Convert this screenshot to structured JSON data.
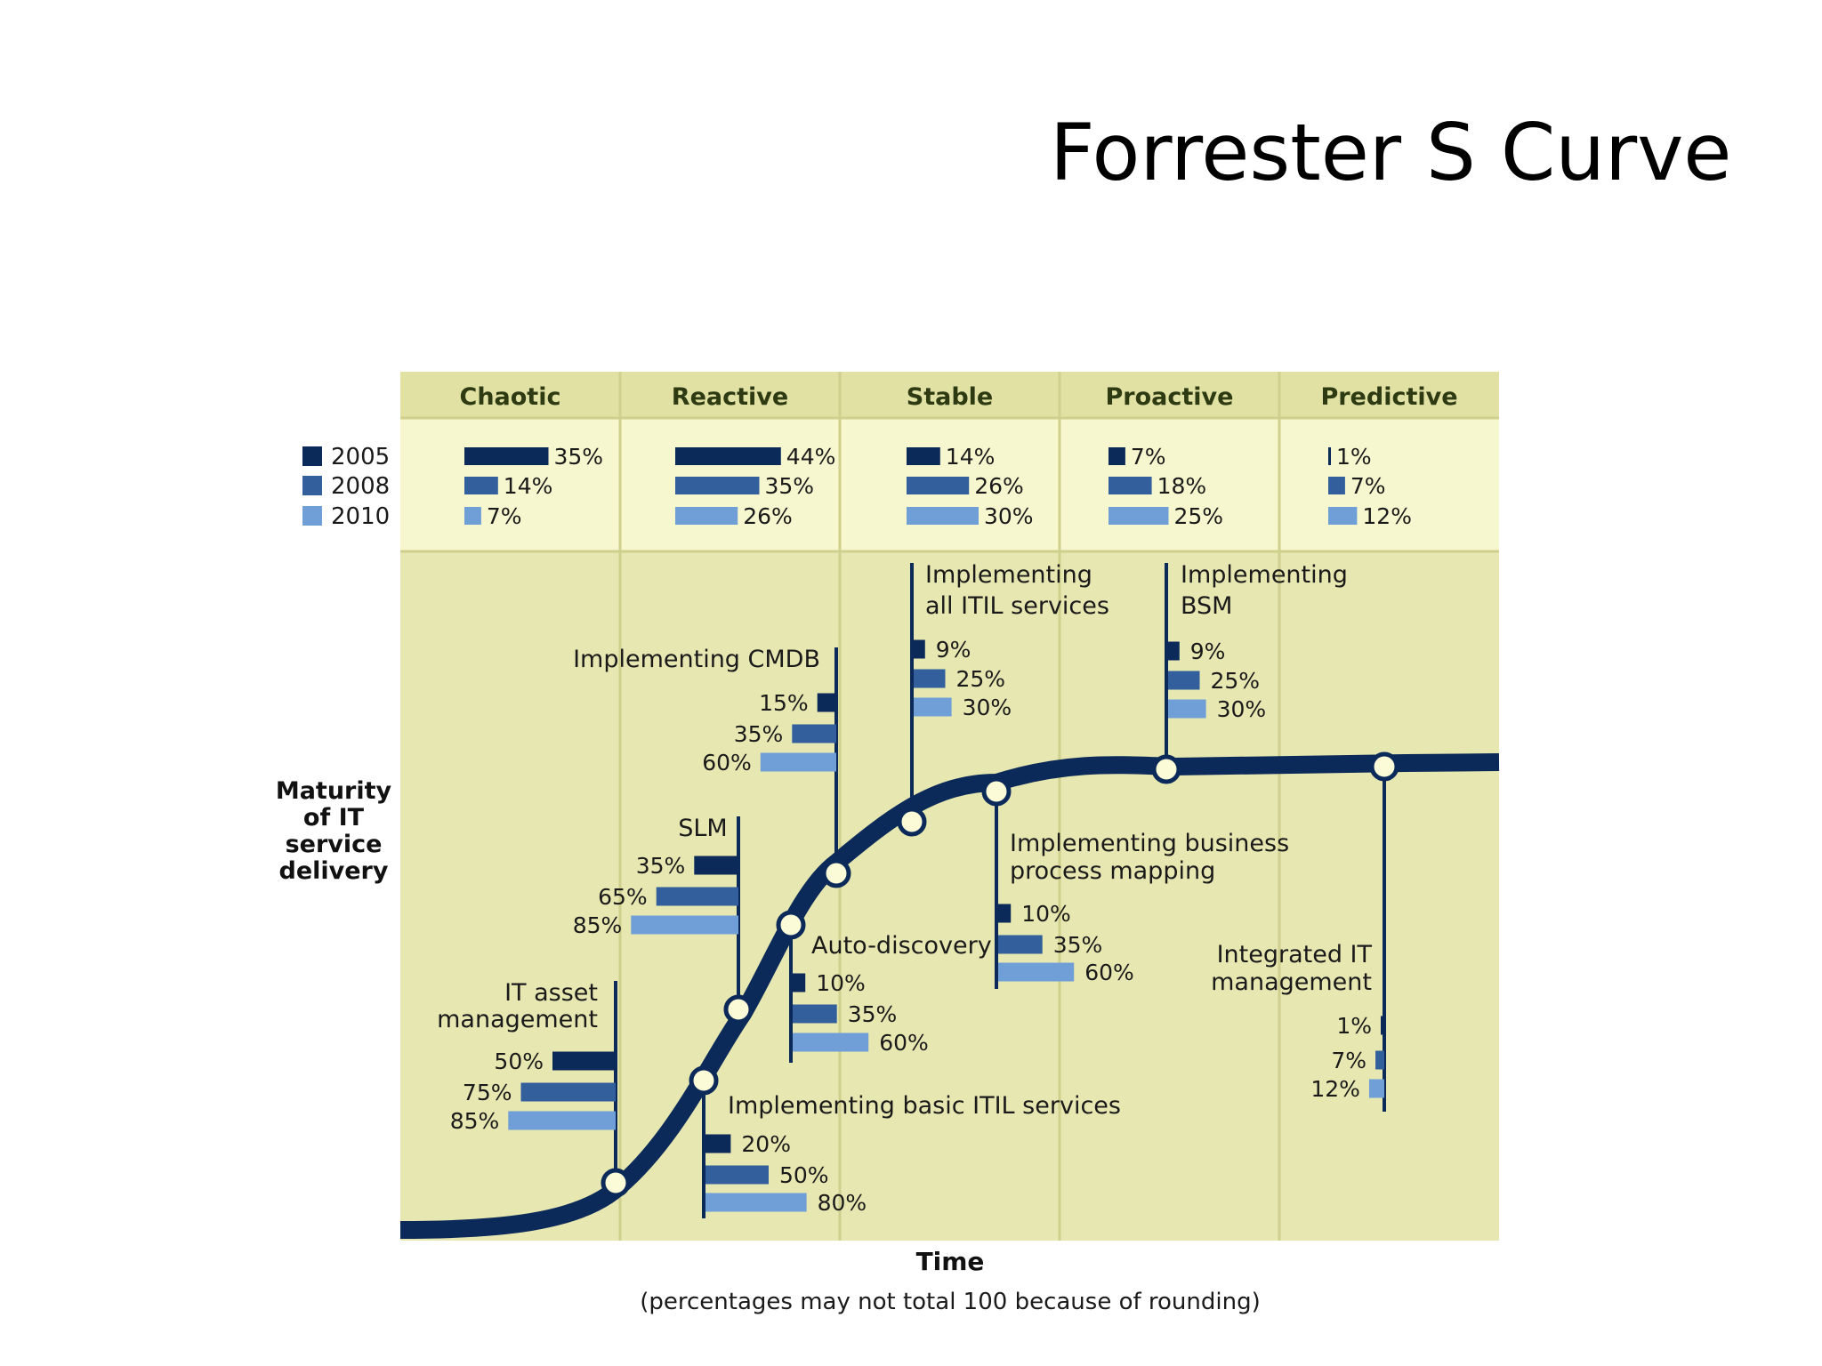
{
  "slide": {
    "title": "Forrester S Curve"
  },
  "colors": {
    "series_2005": "#0b2a59",
    "series_2008": "#33609c",
    "series_2010": "#6f9fd6",
    "header_band": "#e1e1a4",
    "legend_band": "#f7f7cf",
    "plot_bg": "#e7e7b1",
    "curve": "#0b2a59"
  },
  "chart_data": {
    "type": "bar",
    "x_label": "Time",
    "y_label": "Maturity of IT service delivery",
    "y_label_lines": [
      "Maturity",
      "of IT",
      "service",
      "delivery"
    ],
    "footnote": "(percentages may not total 100 because of rounding)",
    "legend": [
      "2005",
      "2008",
      "2010"
    ],
    "stages": [
      {
        "name": "Chaotic",
        "values": [
          35,
          14,
          7
        ]
      },
      {
        "name": "Reactive",
        "values": [
          44,
          35,
          26
        ]
      },
      {
        "name": "Stable",
        "values": [
          14,
          26,
          30
        ]
      },
      {
        "name": "Proactive",
        "values": [
          7,
          18,
          25
        ]
      },
      {
        "name": "Predictive",
        "values": [
          1,
          7,
          12
        ]
      }
    ],
    "milestones": [
      {
        "label_lines": [
          "IT asset",
          "management"
        ],
        "values": [
          50,
          75,
          85
        ]
      },
      {
        "label_lines": [
          "Implementing basic ITIL services"
        ],
        "values": [
          20,
          50,
          80
        ]
      },
      {
        "label_lines": [
          "SLM"
        ],
        "values": [
          35,
          65,
          85
        ]
      },
      {
        "label_lines": [
          "Auto-discovery"
        ],
        "values": [
          10,
          35,
          60
        ]
      },
      {
        "label_lines": [
          "Implementing CMDB"
        ],
        "values": [
          15,
          35,
          60
        ]
      },
      {
        "label_lines": [
          "Implementing",
          "all ITIL services"
        ],
        "values": [
          9,
          25,
          30
        ]
      },
      {
        "label_lines": [
          "Implementing business",
          "process mapping"
        ],
        "values": [
          10,
          35,
          60
        ]
      },
      {
        "label_lines": [
          "Implementing",
          "BSM"
        ],
        "values": [
          9,
          25,
          30
        ]
      },
      {
        "label_lines": [
          "Integrated IT",
          "management"
        ],
        "values": [
          1,
          7,
          12
        ]
      }
    ]
  }
}
